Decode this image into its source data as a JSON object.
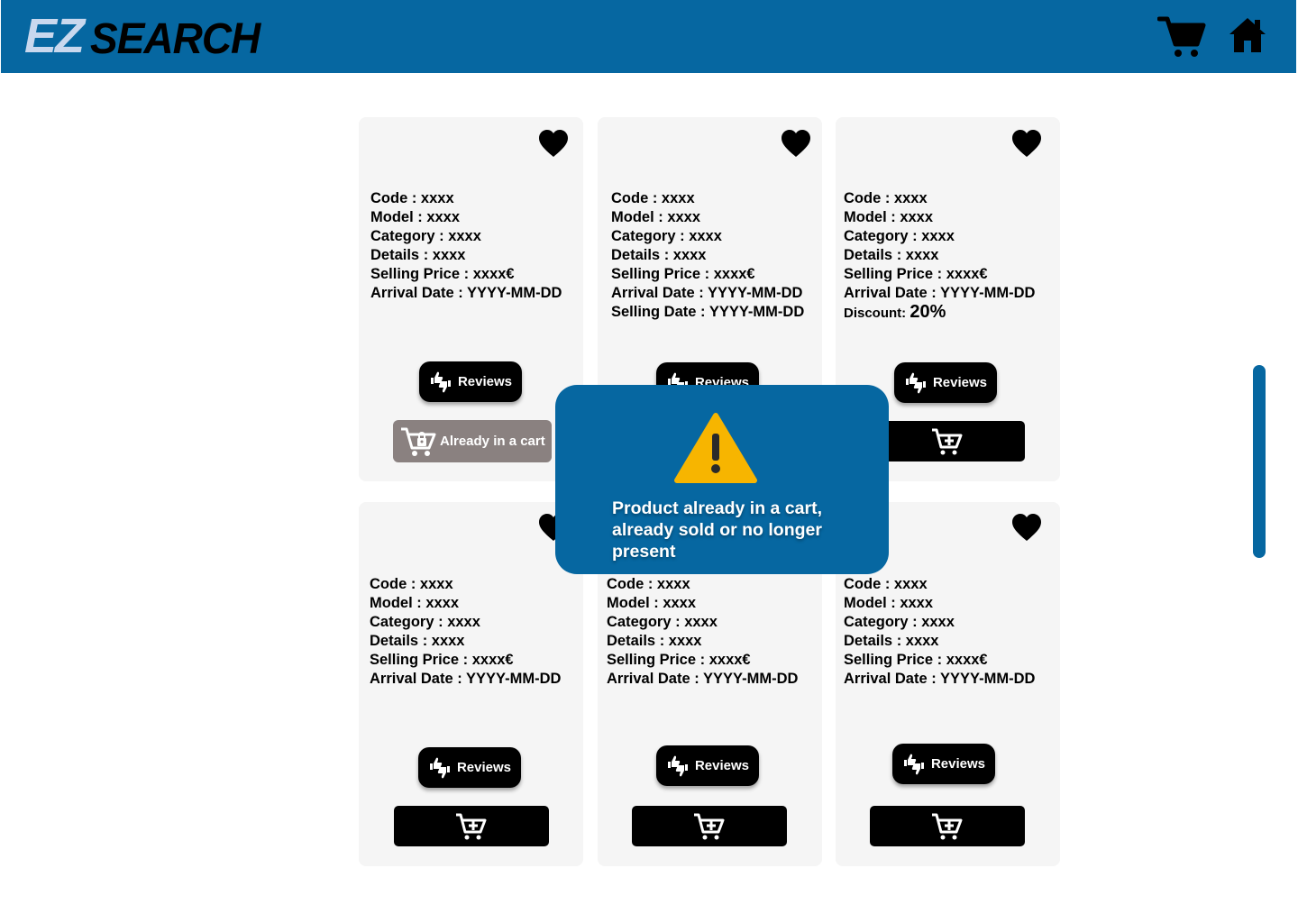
{
  "header": {
    "logo_ez": "EZ",
    "logo_search": "SEARCH",
    "cart_icon": "cart-icon",
    "home_icon": "home-icon",
    "color": "#0667a1"
  },
  "labels": {
    "code": "Code : ",
    "model": "Model : ",
    "category": "Category : ",
    "details": "Details : ",
    "selling_price": "Selling Price : ",
    "arrival_date": "Arrival Date : ",
    "selling_date": "Selling Date : ",
    "discount": "Discount:  "
  },
  "products": [
    {
      "code": "xxxx",
      "model": "xxxx",
      "category": "xxxx",
      "details": "xxxx",
      "selling_price": "xxxx€",
      "arrival_date": "YYYY-MM-DD",
      "reviews_label": "Reviews",
      "cart_status": "Already in a cart"
    },
    {
      "code": "xxxx",
      "model": "xxxx",
      "category": "xxxx",
      "details": "xxxx",
      "selling_price": "xxxx€",
      "arrival_date": "YYYY-MM-DD",
      "selling_date": "YYYY-MM-DD",
      "reviews_label": "Reviews"
    },
    {
      "code": "xxxx",
      "model": "xxxx",
      "category": "xxxx",
      "details": "xxxx",
      "selling_price": "xxxx€",
      "arrival_date": "YYYY-MM-DD",
      "discount": "20%",
      "reviews_label": "Reviews"
    },
    {
      "code": "xxxx",
      "model": "xxxx",
      "category": "xxxx",
      "details": "xxxx",
      "selling_price": "xxxx€",
      "arrival_date": "YYYY-MM-DD",
      "reviews_label": "Reviews"
    },
    {
      "code": "xxxx",
      "model": "xxxx",
      "category": "xxxx",
      "details": "xxxx",
      "selling_price": "xxxx€",
      "arrival_date": "YYYY-MM-DD",
      "reviews_label": "Reviews"
    },
    {
      "code": "xxxx",
      "model": "xxxx",
      "category": "xxxx",
      "details": "xxxx",
      "selling_price": "xxxx€",
      "arrival_date": "YYYY-MM-DD",
      "reviews_label": "Reviews"
    }
  ],
  "toast": {
    "icon": "warning-icon",
    "message": "Product already in a cart, already sold or no longer present"
  },
  "colors": {
    "brand": "#0667a1",
    "card_bg": "#f5f5f5",
    "in_cart_bg": "#8a8180",
    "warning": "#f7b500"
  }
}
